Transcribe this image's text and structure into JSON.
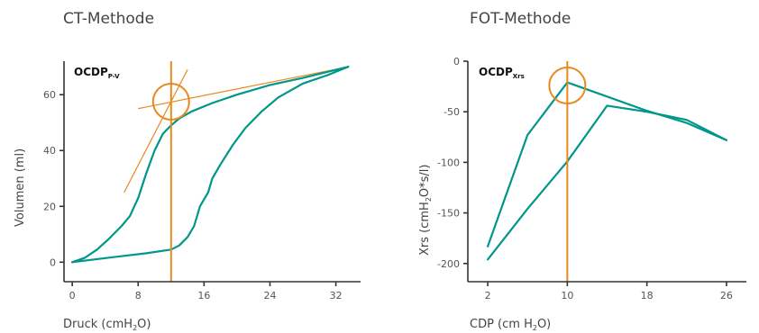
{
  "colors": {
    "curve": "#00968a",
    "marker": "#e8891e",
    "axis": "#333333"
  },
  "chart_data": [
    {
      "type": "line",
      "title": "CT-Methode",
      "xlabel": "Druck (cmH",
      "xlabel_sub": "2",
      "xlabel_end": "O)",
      "ylabel": "Volumen (ml)",
      "annotation": "OCDP",
      "annotation_sub": "P-V",
      "xlim": [
        -1,
        35
      ],
      "ylim": [
        -7,
        72
      ],
      "xticks": [
        0,
        8,
        16,
        24,
        32
      ],
      "yticks": [
        0,
        20,
        40,
        60
      ],
      "series": [
        {
          "values": [
            [
              0,
              0
            ],
            [
              1.5,
              1.5
            ],
            [
              3,
              4.5
            ],
            [
              4.5,
              8.5
            ],
            [
              6,
              13
            ],
            [
              7,
              16.5
            ],
            [
              8,
              23
            ],
            [
              9,
              32
            ],
            [
              10,
              40
            ],
            [
              11,
              46
            ],
            [
              12,
              49
            ],
            [
              13,
              51.5
            ],
            [
              14.5,
              54
            ],
            [
              17,
              57
            ],
            [
              20,
              60
            ],
            [
              24,
              63.5
            ],
            [
              28,
              66
            ],
            [
              33.5,
              70
            ]
          ]
        },
        {
          "values": [
            [
              0,
              0
            ],
            [
              5,
              1.8
            ],
            [
              9,
              3.2
            ],
            [
              12,
              4.5
            ],
            [
              13,
              6
            ],
            [
              14,
              9
            ],
            [
              14.8,
              13
            ],
            [
              15.5,
              20
            ],
            [
              16.5,
              25
            ],
            [
              17,
              30
            ],
            [
              18,
              35
            ],
            [
              19.5,
              42
            ],
            [
              21,
              48
            ],
            [
              23,
              54
            ],
            [
              25,
              59
            ],
            [
              28,
              64
            ],
            [
              31,
              67
            ],
            [
              33.5,
              70
            ]
          ]
        }
      ],
      "marker_x": 12,
      "circle_center": [
        12,
        57.5
      ],
      "tangent_lines": [
        {
          "from": [
            6.3,
            25
          ],
          "to": [
            14,
            69
          ]
        },
        {
          "from": [
            8,
            55
          ],
          "to": [
            33.5,
            70
          ]
        }
      ]
    },
    {
      "type": "line",
      "title": "FOT-Methode",
      "xlabel": "CDP (cm H",
      "xlabel_sub": "2",
      "xlabel_end": "O)",
      "ylabel": "Xrs (cmH",
      "ylabel_sub": "2",
      "ylabel_end": "O*s/l)",
      "annotation": "OCDP",
      "annotation_sub": "Xrs",
      "xlim": [
        0,
        28
      ],
      "ylim": [
        -218,
        0
      ],
      "xticks": [
        2,
        10,
        18,
        26
      ],
      "yticks": [
        0,
        -50,
        -100,
        -150,
        -200
      ],
      "series": [
        {
          "values": [
            [
              2,
              -183
            ],
            [
              6,
              -73
            ],
            [
              10,
              -21
            ],
            [
              14,
              -35
            ],
            [
              18,
              -49
            ],
            [
              22,
              -61
            ],
            [
              26,
              -78
            ]
          ]
        },
        {
          "values": [
            [
              2,
              -196
            ],
            [
              6,
              -146
            ],
            [
              10,
              -99
            ],
            [
              14,
              -44
            ],
            [
              18,
              -50
            ],
            [
              22,
              -58
            ],
            [
              26,
              -78
            ]
          ]
        }
      ],
      "marker_x": 10,
      "circle_center": [
        10,
        -24
      ]
    }
  ]
}
